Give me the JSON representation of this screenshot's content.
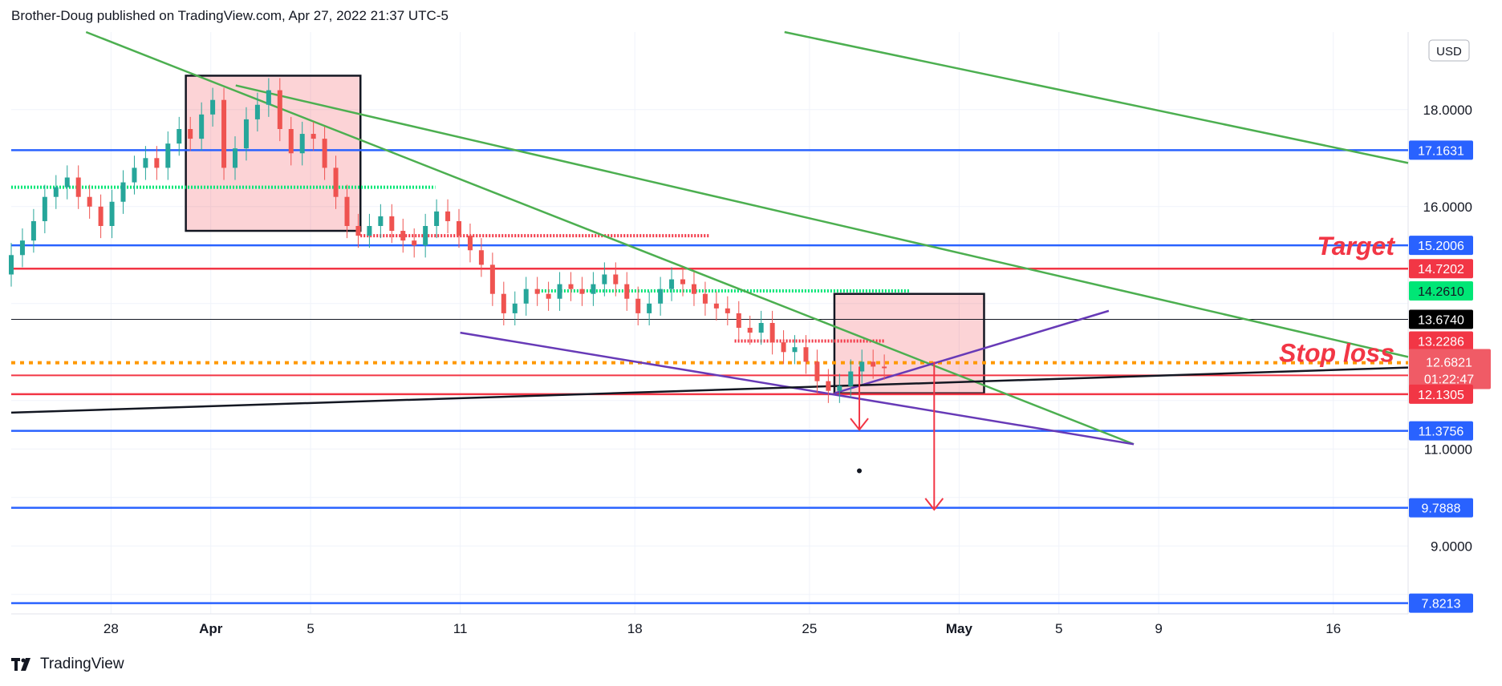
{
  "header": {
    "text": "Brother-Doug published on TradingView.com, Apr 27, 2022 21:37 UTC-5"
  },
  "footer": {
    "brand": "TradingView"
  },
  "currency_button": "USD",
  "colors": {
    "grid": "#f0f3fa",
    "blue_line": "#2962ff",
    "red_line": "#f23645",
    "green_trend": "#4caf50",
    "purple_trend": "#673ab7",
    "black_line": "#131722",
    "orange_dotted": "#ff9800",
    "bright_green": "#00e676",
    "box_fill": "rgba(242,54,69,0.22)",
    "candle_up": "#26a69a",
    "candle_down": "#ef5350"
  },
  "chart_data": {
    "type": "candlestick",
    "symbol_currency": "USD",
    "y_range": [
      7.6,
      19.6
    ],
    "y_axis_ticks": [
      "18.0000",
      "16.0000",
      "11.0000",
      "9.0000"
    ],
    "x_range_days_label": "Mar 24, 2022 – May 19, 2022",
    "x_axis_ticks": [
      {
        "label": "28",
        "date": "2022-03-28",
        "bold": false
      },
      {
        "label": "Apr",
        "date": "2022-04-01",
        "bold": true
      },
      {
        "label": "5",
        "date": "2022-04-05",
        "bold": false
      },
      {
        "label": "11",
        "date": "2022-04-11",
        "bold": false
      },
      {
        "label": "18",
        "date": "2022-04-18",
        "bold": false
      },
      {
        "label": "25",
        "date": "2022-04-25",
        "bold": false
      },
      {
        "label": "May",
        "date": "2022-05-01",
        "bold": true
      },
      {
        "label": "5",
        "date": "2022-05-05",
        "bold": false
      },
      {
        "label": "9",
        "date": "2022-05-09",
        "bold": false
      },
      {
        "label": "16",
        "date": "2022-05-16",
        "bold": false
      }
    ],
    "horizontal_levels": [
      {
        "value": 17.1631,
        "label": "17.1631",
        "style": "blue"
      },
      {
        "value": 15.2006,
        "label": "15.2006",
        "style": "blue"
      },
      {
        "value": 14.7202,
        "label": "14.7202",
        "style": "red"
      },
      {
        "value": 14.261,
        "label": "14.2610",
        "style": "bright-green-tag"
      },
      {
        "value": 13.674,
        "label": "13.6740",
        "style": "black-thin"
      },
      {
        "value": 13.2286,
        "label": "13.2286",
        "style": "red-tag"
      },
      {
        "value": 12.6821,
        "label": "12.6821",
        "countdown": "01:22:47",
        "style": "last-price"
      },
      {
        "value": 12.1305,
        "label": "12.1305",
        "style": "red"
      },
      {
        "value": 11.3756,
        "label": "11.3756",
        "style": "blue"
      },
      {
        "value": 9.7888,
        "label": "9.7888",
        "style": "blue"
      },
      {
        "value": 7.8213,
        "label": "7.8213",
        "style": "blue"
      }
    ],
    "extra_lines": [
      {
        "value": 12.52,
        "style": "red"
      },
      {
        "value": 12.78,
        "style": "orange-dotted"
      }
    ],
    "annotations": [
      {
        "text": "Target",
        "value": 15.2
      },
      {
        "text": "Stop loss",
        "value": 13.0
      }
    ],
    "ohlc_approx_closes": [
      15.0,
      15.3,
      15.7,
      16.2,
      16.4,
      16.6,
      16.2,
      16.0,
      15.6,
      16.1,
      16.5,
      16.8,
      17.0,
      16.8,
      17.3,
      17.6,
      17.4,
      17.9,
      18.2,
      16.8,
      17.2,
      17.8,
      18.1,
      18.4,
      17.6,
      17.1,
      17.5,
      17.4,
      16.8,
      16.2,
      15.6,
      15.4,
      15.6,
      15.8,
      15.5,
      15.3,
      15.2,
      15.6,
      15.9,
      15.7,
      15.4,
      15.1,
      14.8,
      14.2,
      13.8,
      14.0,
      14.3,
      14.2,
      14.1,
      14.4,
      14.3,
      14.2,
      14.4,
      14.6,
      14.4,
      14.1,
      13.8,
      14.0,
      14.3,
      14.5,
      14.4,
      14.2,
      14.0,
      13.9,
      13.8,
      13.5,
      13.4,
      13.6,
      13.2,
      13.0,
      13.1,
      12.8,
      12.4,
      12.2,
      12.3,
      12.6,
      12.8,
      12.7,
      12.68
    ]
  }
}
